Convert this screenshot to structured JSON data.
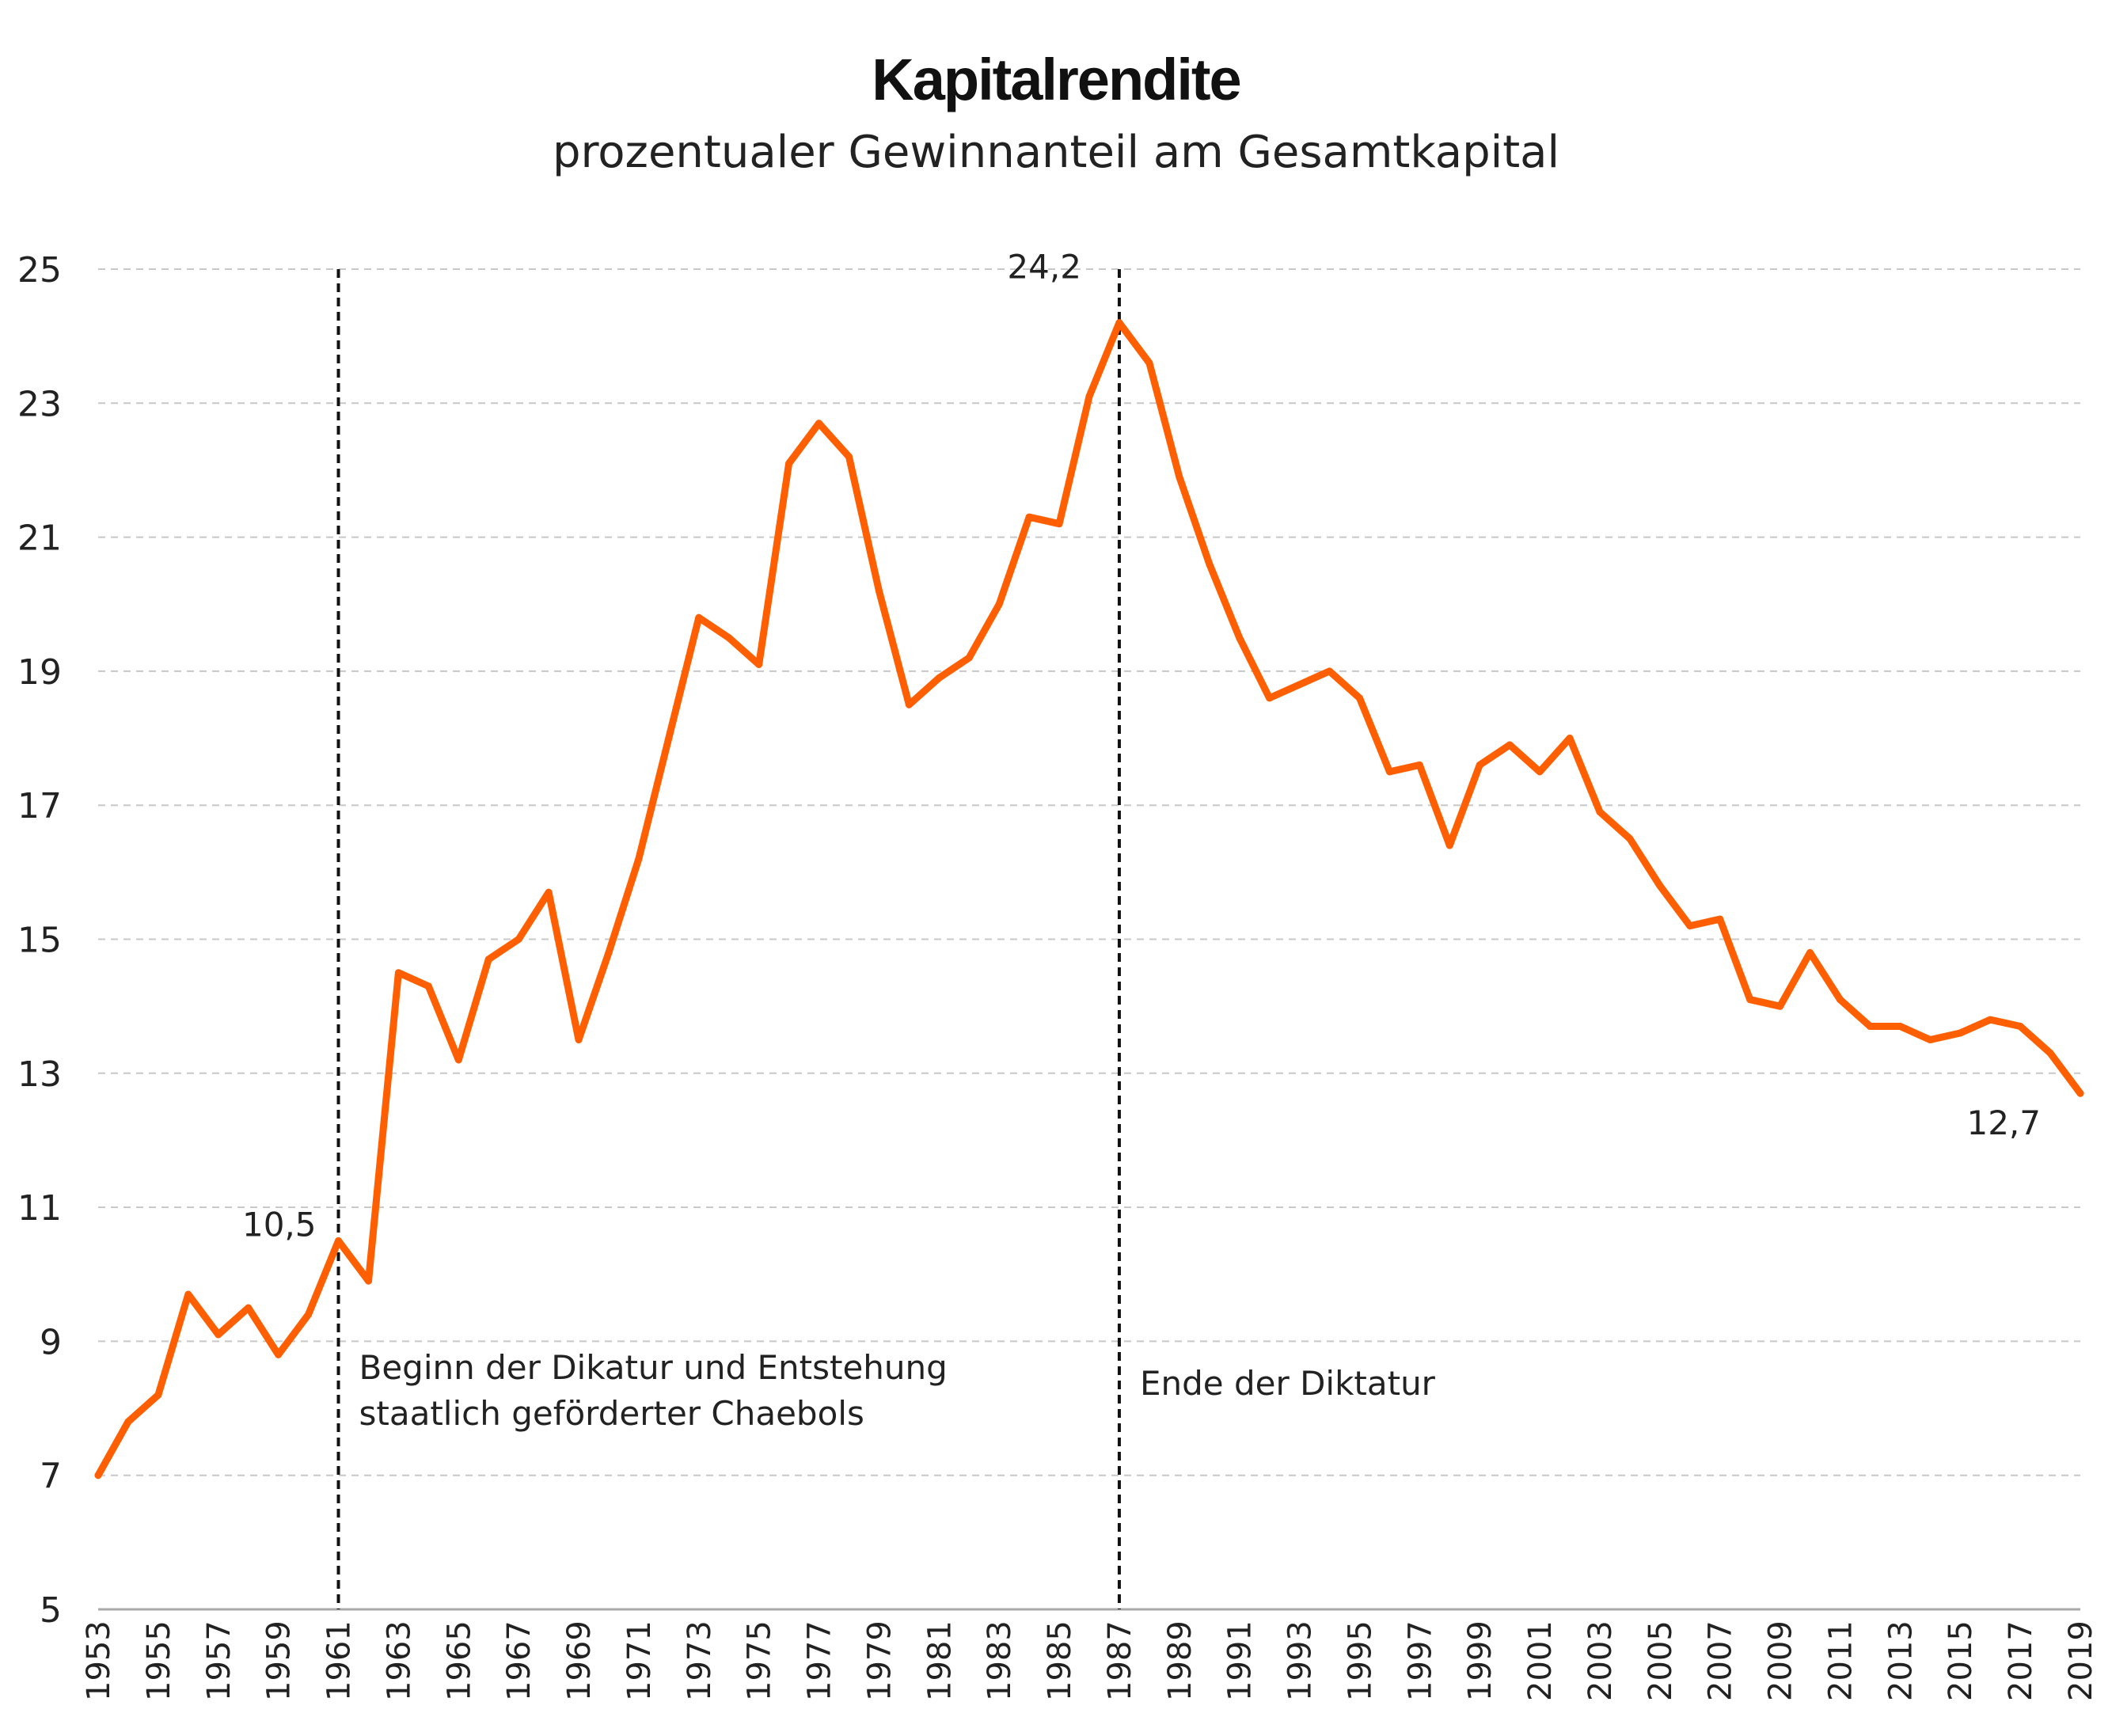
{
  "chart_data": {
    "type": "line",
    "title": "Kapitalrendite",
    "subtitle": "prozentualer Gewinnanteil am Gesamtkapital",
    "xlabel": "",
    "ylabel": "",
    "ylim": [
      5,
      25
    ],
    "xlim": [
      1953,
      2019
    ],
    "yticks": [
      "5",
      "7",
      "9",
      "11",
      "13",
      "15",
      "17",
      "19",
      "21",
      "23",
      "25"
    ],
    "xticks": [
      "1953",
      "1955",
      "1957",
      "1959",
      "1961",
      "1963",
      "1965",
      "1967",
      "1969",
      "1971",
      "1973",
      "1975",
      "1977",
      "1979",
      "1981",
      "1983",
      "1985",
      "1987",
      "1989",
      "1991",
      "1993",
      "1995",
      "1997",
      "1999",
      "2001",
      "2003",
      "2005",
      "2007",
      "2009",
      "2011",
      "2013",
      "2015",
      "2017",
      "2019"
    ],
    "grid": "horizontal dashed",
    "line_color": "#ff5f00",
    "x": [
      1953,
      1954,
      1955,
      1956,
      1957,
      1958,
      1959,
      1960,
      1961,
      1962,
      1963,
      1964,
      1965,
      1966,
      1967,
      1968,
      1969,
      1970,
      1971,
      1972,
      1973,
      1974,
      1975,
      1976,
      1977,
      1978,
      1979,
      1980,
      1981,
      1982,
      1983,
      1984,
      1985,
      1986,
      1987,
      1988,
      1989,
      1990,
      1991,
      1992,
      1993,
      1994,
      1995,
      1996,
      1997,
      1998,
      1999,
      2000,
      2001,
      2002,
      2003,
      2004,
      2005,
      2006,
      2007,
      2008,
      2009,
      2010,
      2011,
      2012,
      2013,
      2014,
      2015,
      2016,
      2017,
      2018,
      2019
    ],
    "values": [
      7.0,
      7.8,
      8.2,
      9.7,
      9.1,
      9.5,
      8.8,
      9.4,
      10.5,
      9.9,
      14.5,
      14.3,
      13.2,
      14.7,
      15.0,
      15.7,
      13.5,
      14.8,
      16.2,
      18.0,
      19.8,
      19.5,
      19.1,
      22.1,
      22.7,
      22.2,
      20.2,
      18.5,
      18.9,
      19.2,
      20.0,
      21.3,
      21.2,
      23.1,
      24.2,
      23.6,
      21.9,
      20.6,
      19.5,
      18.6,
      18.8,
      19.0,
      18.6,
      17.5,
      17.6,
      16.4,
      17.6,
      17.9,
      17.5,
      18.0,
      16.9,
      16.5,
      15.8,
      15.2,
      15.3,
      14.1,
      14.0,
      14.8,
      14.1,
      13.7,
      13.7,
      13.5,
      13.6,
      13.8,
      13.7,
      13.3,
      12.7
    ],
    "annotations": [
      {
        "x": 1961,
        "y": 10.5,
        "label": "10,5"
      },
      {
        "x": 1987,
        "y": 24.2,
        "label": "24,2"
      },
      {
        "x": 2019,
        "y": 12.7,
        "label": "12,7"
      }
    ],
    "events": [
      {
        "x": 1961,
        "label_lines": [
          "Beginn der Dikatur und Entstehung",
          "staatlich geförderter Chaebols"
        ]
      },
      {
        "x": 1987,
        "label_lines": [
          "Ende der Diktatur"
        ]
      }
    ]
  }
}
